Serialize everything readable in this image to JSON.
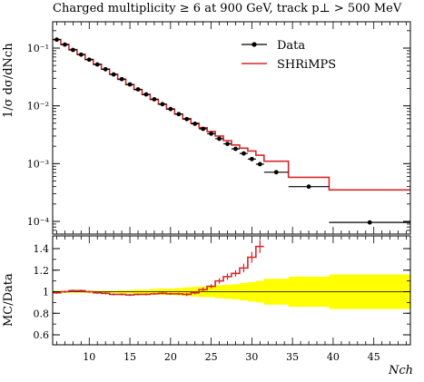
{
  "title": "Charged multiplicity ≥ 6 at 900 GeV, track p⊥ > 500 MeV",
  "ylabel_main": "1/σ dσ/dNch",
  "ylabel_ratio": "MC/Data",
  "xlabel": "Nch",
  "legend": {
    "data_label": "Data",
    "mc_label": "SHRiMPS"
  },
  "colors": {
    "data": "#000000",
    "mc": "#d62728",
    "band": "#ffff00"
  },
  "chart_data": [
    {
      "type": "line",
      "panel": "main",
      "title": "Charged multiplicity ≥ 6 at 900 GeV, track p⊥ > 500 MeV",
      "xlabel": "Nch",
      "ylabel": "1/σ dσ/dNch",
      "xlim": [
        5.5,
        49.5
      ],
      "ylim": [
        6e-05,
        0.2
      ],
      "yscale": "log",
      "xticks": [
        10,
        15,
        20,
        25,
        30,
        35,
        40,
        45
      ],
      "yticks": [
        "10^-4",
        "10^-3",
        "10^-2",
        "10^-1"
      ],
      "legend_position": "top-right",
      "series": [
        {
          "name": "Data",
          "style": "points",
          "x": [
            6,
            7,
            8,
            9,
            10,
            11,
            12,
            13,
            14,
            15,
            16,
            17,
            18,
            19,
            20,
            21,
            22,
            23,
            24,
            25,
            26,
            27,
            28,
            29,
            30,
            31,
            33,
            37,
            44.5
          ],
          "xerr": [
            0.5,
            0.5,
            0.5,
            0.5,
            0.5,
            0.5,
            0.5,
            0.5,
            0.5,
            0.5,
            0.5,
            0.5,
            0.5,
            0.5,
            0.5,
            0.5,
            0.5,
            0.5,
            0.5,
            0.5,
            0.5,
            0.5,
            0.5,
            0.5,
            0.5,
            0.5,
            1.5,
            2.5,
            5
          ],
          "y": [
            0.14,
            0.115,
            0.093,
            0.077,
            0.063,
            0.052,
            0.043,
            0.035,
            0.029,
            0.0235,
            0.0193,
            0.0158,
            0.013,
            0.0107,
            0.0088,
            0.0072,
            0.0059,
            0.0049,
            0.004,
            0.0033,
            0.0027,
            0.0022,
            0.0018,
            0.0015,
            0.0012,
            0.00098,
            0.00071,
            0.0004,
            9.6e-05
          ]
        },
        {
          "name": "SHRiMPS",
          "style": "step",
          "edges": [
            5.5,
            6.5,
            7.5,
            8.5,
            9.5,
            10.5,
            11.5,
            12.5,
            13.5,
            14.5,
            15.5,
            16.5,
            17.5,
            18.5,
            19.5,
            20.5,
            21.5,
            22.5,
            23.5,
            24.5,
            25.5,
            26.5,
            27.5,
            28.5,
            29.5,
            30.5,
            31.5,
            34.5,
            39.5,
            49.5
          ],
          "y": [
            0.141,
            0.116,
            0.094,
            0.078,
            0.0635,
            0.0525,
            0.0432,
            0.0352,
            0.0288,
            0.0233,
            0.0191,
            0.0157,
            0.0129,
            0.0107,
            0.0088,
            0.0072,
            0.006,
            0.005,
            0.0042,
            0.0036,
            0.003,
            0.0025,
            0.0021,
            0.00185,
            0.00165,
            0.0014,
            0.0011,
            0.00058,
            0.00035
          ]
        }
      ]
    },
    {
      "type": "line",
      "panel": "ratio",
      "ylabel": "MC/Data",
      "xlabel": "Nch",
      "xlim": [
        5.5,
        49.5
      ],
      "ylim": [
        0.5,
        1.5
      ],
      "yticks": [
        0.6,
        0.8,
        1.0,
        1.2,
        1.4
      ],
      "xticks": [
        10,
        15,
        20,
        25,
        30,
        35,
        40,
        45
      ],
      "band": {
        "edges": [
          5.5,
          6.5,
          7.5,
          8.5,
          9.5,
          10.5,
          11.5,
          12.5,
          13.5,
          14.5,
          15.5,
          16.5,
          17.5,
          18.5,
          19.5,
          20.5,
          21.5,
          22.5,
          23.5,
          24.5,
          25.5,
          26.5,
          27.5,
          28.5,
          29.5,
          30.5,
          31.5,
          34.5,
          39.5,
          49.5
        ],
        "half_width": [
          0.01,
          0.01,
          0.01,
          0.01,
          0.01,
          0.01,
          0.01,
          0.01,
          0.015,
          0.015,
          0.02,
          0.02,
          0.025,
          0.03,
          0.03,
          0.035,
          0.04,
          0.045,
          0.05,
          0.05,
          0.06,
          0.065,
          0.07,
          0.08,
          0.09,
          0.1,
          0.12,
          0.14,
          0.16
        ]
      },
      "series": [
        {
          "name": "SHRiMPS",
          "style": "step",
          "edges": [
            5.5,
            6.5,
            7.5,
            8.5,
            9.5,
            10.5,
            11.5,
            12.5,
            13.5,
            14.5,
            15.5,
            16.5,
            17.5,
            18.5,
            19.5,
            20.5,
            21.5,
            22.5,
            23.5,
            24.5,
            25.5,
            26.5,
            27.5,
            28.5,
            29.5,
            30.5,
            31.5
          ],
          "y": [
            0.99,
            1.0,
            1.01,
            1.01,
            1.0,
            0.99,
            0.985,
            0.975,
            0.975,
            0.97,
            0.975,
            0.975,
            0.98,
            0.985,
            0.98,
            0.98,
            0.975,
            0.99,
            1.02,
            1.05,
            1.1,
            1.14,
            1.17,
            1.22,
            1.32,
            1.42
          ],
          "yerr": [
            0.01,
            0.01,
            0.01,
            0.01,
            0.01,
            0.01,
            0.01,
            0.01,
            0.01,
            0.01,
            0.01,
            0.01,
            0.01,
            0.01,
            0.01,
            0.01,
            0.015,
            0.015,
            0.02,
            0.02,
            0.025,
            0.03,
            0.03,
            0.04,
            0.05,
            0.06
          ]
        }
      ]
    }
  ]
}
